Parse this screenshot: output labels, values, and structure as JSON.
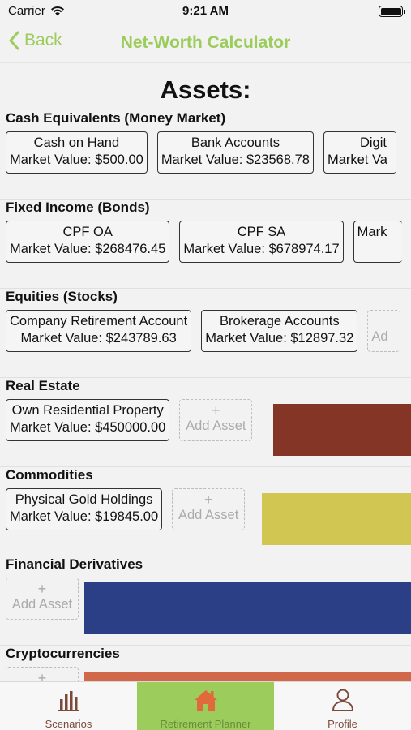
{
  "status_bar": {
    "carrier": "Carrier",
    "time": "9:21 AM"
  },
  "nav": {
    "back_label": "Back",
    "title": "Net-Worth Calculator"
  },
  "assets_title": "Assets:",
  "add_asset_label": "Add Asset",
  "sections": [
    {
      "title": "Cash Equivalents (Money Market)",
      "cards": [
        {
          "name": "Cash on Hand",
          "value": "Market Value: $500.00"
        },
        {
          "name": "Bank Accounts",
          "value": "Market Value: $23568.78"
        },
        {
          "name": "Digit",
          "value": "Market Va"
        }
      ]
    },
    {
      "title": "Fixed Income (Bonds)",
      "cards": [
        {
          "name": "CPF OA",
          "value": "Market Value: $268476.45"
        },
        {
          "name": "CPF SA",
          "value": "Market Value: $678974.17"
        },
        {
          "name": "",
          "value": "Mark"
        }
      ]
    },
    {
      "title": "Equities (Stocks)",
      "cards": [
        {
          "name": "Company Retirement Account",
          "value": "Market Value: $243789.63"
        },
        {
          "name": "Brokerage Accounts",
          "value": "Market Value: $12897.32"
        }
      ],
      "partial_add_label": "Ad"
    },
    {
      "title": "Real Estate",
      "cards": [
        {
          "name": "Own Residential Property",
          "value": "Market Value: $450000.00"
        }
      ],
      "accent_color": "#843525"
    },
    {
      "title": "Commodities",
      "cards": [
        {
          "name": "Physical Gold Holdings",
          "value": "Market Value: $19845.00"
        }
      ],
      "accent_color": "#d2c652"
    },
    {
      "title": "Financial Derivatives",
      "cards": [],
      "accent_color": "#2b3f86"
    },
    {
      "title": "Cryptocurrencies",
      "cards": [],
      "accent_color": "#d2684a"
    }
  ],
  "tabs": [
    {
      "label": "Scenarios",
      "icon": "bar-chart-icon"
    },
    {
      "label": "Retirement Planner",
      "icon": "house-icon",
      "active": true
    },
    {
      "label": "Profile",
      "icon": "person-icon"
    }
  ],
  "colors": {
    "accent_green": "#9ccc5c",
    "tab_label_brown": "#7b4a3a"
  }
}
